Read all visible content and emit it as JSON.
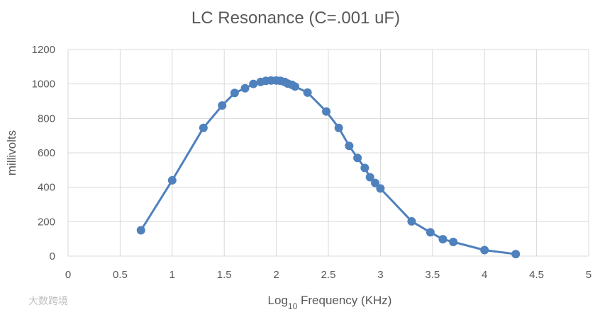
{
  "chart_data": {
    "type": "scatter",
    "title": "LC Resonance (C=.001 uF)",
    "xlabel_main": "Log",
    "xlabel_sub": "10",
    "xlabel_rest": " Frequency (KHz)",
    "ylabel": "millivolts",
    "xlim": [
      0,
      5
    ],
    "ylim": [
      0,
      1200
    ],
    "x_ticks": [
      "0",
      "0.5",
      "1",
      "1.5",
      "2",
      "2.5",
      "3",
      "3.5",
      "4",
      "4.5",
      "5"
    ],
    "y_ticks": [
      "0",
      "200",
      "400",
      "600",
      "800",
      "1000",
      "1200"
    ],
    "grid": true,
    "color": "#4f81bd",
    "series": [
      {
        "x": [
          0.7,
          1.0,
          1.3,
          1.48,
          1.6,
          1.7,
          1.78,
          1.85,
          1.9,
          1.95,
          2.0,
          2.04,
          2.08,
          2.11,
          2.15,
          2.18,
          2.3,
          2.48,
          2.6,
          2.7,
          2.78,
          2.85,
          2.9,
          2.95,
          3.0,
          3.3,
          3.48,
          3.6,
          3.7,
          4.0,
          4.3
        ],
        "y": [
          150,
          440,
          745,
          875,
          948,
          975,
          1000,
          1012,
          1018,
          1020,
          1020,
          1018,
          1012,
          1002,
          995,
          985,
          950,
          840,
          745,
          640,
          570,
          512,
          458,
          425,
          393,
          202,
          138,
          98,
          82,
          35,
          12
        ]
      }
    ]
  },
  "watermark": "大数跨境"
}
